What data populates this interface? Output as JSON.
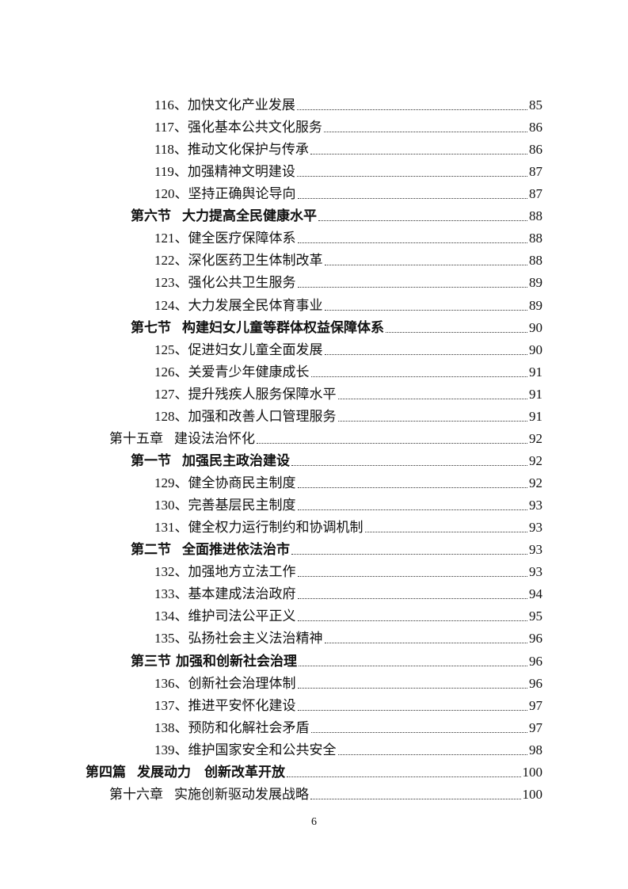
{
  "toc": [
    {
      "level": "item",
      "prefix": "116、",
      "title": "加快文化产业发展",
      "page": "85"
    },
    {
      "level": "item",
      "prefix": "117、",
      "title": "强化基本公共文化服务",
      "page": "86"
    },
    {
      "level": "item",
      "prefix": "118、",
      "title": "推动文化保护与传承",
      "page": "86"
    },
    {
      "level": "item",
      "prefix": "119、",
      "title": "加强精神文明建设",
      "page": "87"
    },
    {
      "level": "item",
      "prefix": "120、",
      "title": "坚持正确舆论导向",
      "page": "87"
    },
    {
      "level": "section",
      "prefix": "第六节",
      "title": "大力提高全民健康水平",
      "page": "88"
    },
    {
      "level": "item",
      "prefix": "121、",
      "title": "健全医疗保障体系",
      "page": "88"
    },
    {
      "level": "item",
      "prefix": "122、",
      "title": "深化医药卫生体制改革",
      "page": "88"
    },
    {
      "level": "item",
      "prefix": "123、",
      "title": "强化公共卫生服务",
      "page": "89"
    },
    {
      "level": "item",
      "prefix": "124、",
      "title": "大力发展全民体育事业",
      "page": "89"
    },
    {
      "level": "section",
      "prefix": "第七节",
      "title": "构建妇女儿童等群体权益保障体系",
      "page": "90"
    },
    {
      "level": "item",
      "prefix": "125、",
      "title": "促进妇女儿童全面发展",
      "page": "90"
    },
    {
      "level": "item",
      "prefix": "126、",
      "title": "关爱青少年健康成长",
      "page": "91"
    },
    {
      "level": "item",
      "prefix": "127、",
      "title": "提升残疾人服务保障水平",
      "page": "91"
    },
    {
      "level": "item",
      "prefix": "128、",
      "title": "加强和改善人口管理服务",
      "page": "91"
    },
    {
      "level": "chapter",
      "prefix": "第十五章",
      "title": "建设法治怀化",
      "page": "92"
    },
    {
      "level": "section",
      "prefix": "第一节",
      "title": "加强民主政治建设",
      "page": "92"
    },
    {
      "level": "item",
      "prefix": "129、",
      "title": "健全协商民主制度",
      "page": "92"
    },
    {
      "level": "item",
      "prefix": "130、",
      "title": "完善基层民主制度",
      "page": "93"
    },
    {
      "level": "item",
      "prefix": "131、",
      "title": "健全权力运行制约和协调机制",
      "page": "93"
    },
    {
      "level": "section",
      "prefix": "第二节",
      "title": "全面推进依法治市",
      "page": "93"
    },
    {
      "level": "item",
      "prefix": "132、",
      "title": "加强地方立法工作",
      "page": "93"
    },
    {
      "level": "item",
      "prefix": "133、",
      "title": "基本建成法治政府",
      "page": "94"
    },
    {
      "level": "item",
      "prefix": "134、",
      "title": "维护司法公平正义",
      "page": "95"
    },
    {
      "level": "item",
      "prefix": "135、",
      "title": "弘扬社会主义法治精神",
      "page": "96"
    },
    {
      "level": "section",
      "prefix": "第三节",
      "title": "加强和创新社会治理",
      "page": "96",
      "tight": true
    },
    {
      "level": "item",
      "prefix": "136、",
      "title": "创新社会治理体制",
      "page": "96"
    },
    {
      "level": "item",
      "prefix": "137、",
      "title": "推进平安怀化建设",
      "page": "97"
    },
    {
      "level": "item",
      "prefix": "138、",
      "title": "预防和化解社会矛盾",
      "page": "97"
    },
    {
      "level": "item",
      "prefix": "139、",
      "title": "维护国家安全和公共安全",
      "page": "98"
    },
    {
      "level": "part",
      "prefix": "第四篇",
      "title": "发展动力　创新改革开放",
      "page": "100"
    },
    {
      "level": "chapter",
      "prefix": "第十六章",
      "title": "实施创新驱动发展战略",
      "page": "100"
    }
  ],
  "footer": {
    "page_number": "6"
  }
}
